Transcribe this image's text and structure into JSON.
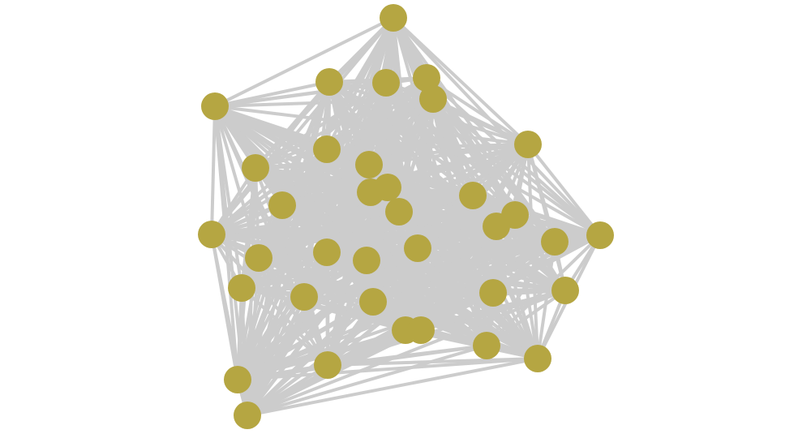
{
  "diagram": {
    "type": "network-graph",
    "edge_color": "#cccccc",
    "node_color": "#b5a642",
    "background_color": "#ffffff"
  }
}
